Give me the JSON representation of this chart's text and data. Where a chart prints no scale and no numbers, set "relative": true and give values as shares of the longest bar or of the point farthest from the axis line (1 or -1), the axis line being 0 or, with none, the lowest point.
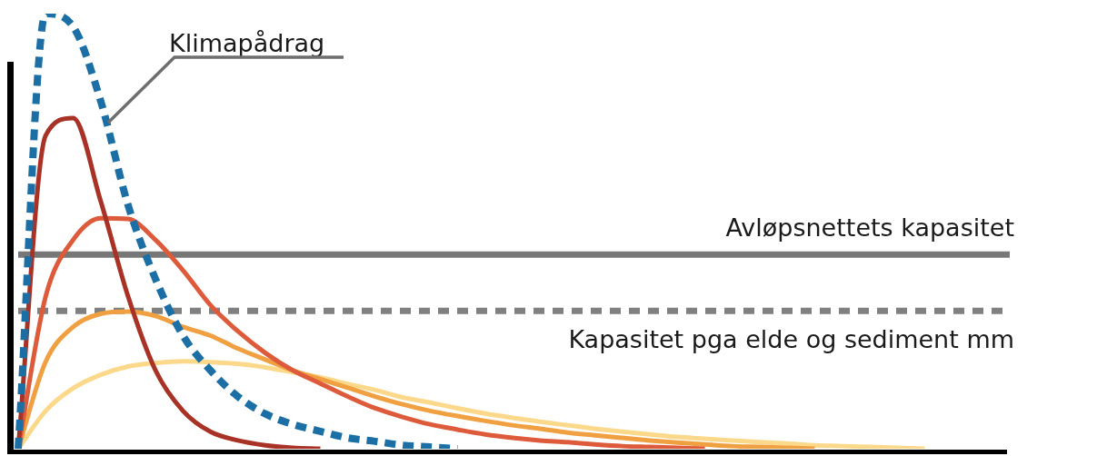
{
  "chart_data": {
    "type": "line",
    "relative": true,
    "legend": false,
    "grid": false,
    "marker": "none",
    "tick_labels": false,
    "categories": [
      null,
      null,
      null,
      null,
      null,
      null,
      null,
      null,
      null,
      null,
      null,
      null,
      null,
      null,
      null,
      null,
      null,
      null,
      null,
      null,
      null,
      null,
      null,
      null,
      null,
      null,
      null,
      null,
      null,
      null,
      null,
      null,
      null,
      null,
      null,
      null,
      null
    ],
    "series": [
      {
        "color": "#1b6fa5",
        "line_style": "dashed",
        "values": [
          0,
          1,
          0.97,
          0.8,
          0.56,
          0.39,
          0.26,
          0.18,
          0.12,
          0.08,
          0.056,
          0.04,
          0.025,
          0.017,
          0.008,
          0.004,
          0,
          null,
          null,
          null,
          null,
          null,
          null,
          null,
          null,
          null,
          null,
          null,
          null,
          null,
          null,
          null,
          null,
          null,
          null,
          null,
          null
        ]
      },
      {
        "color": "#a93226",
        "line_style": "solid",
        "values": [
          0,
          0.72,
          0.76,
          0.57,
          0.35,
          0.18,
          0.087,
          0.039,
          0.019,
          0.008,
          0.002,
          0,
          null,
          null,
          null,
          null,
          null,
          null,
          null,
          null,
          null,
          null,
          null,
          null,
          null,
          null,
          null,
          null,
          null,
          null,
          null,
          null,
          null,
          null,
          null,
          null,
          null
        ]
      },
      {
        "color": "#dd5a3a",
        "line_style": "solid",
        "values": [
          0,
          0.35,
          0.48,
          0.53,
          0.528,
          0.48,
          0.41,
          0.33,
          0.27,
          0.22,
          0.18,
          0.15,
          0.12,
          0.093,
          0.073,
          0.056,
          0.044,
          0.033,
          0.025,
          0.019,
          0.015,
          0.01,
          0.006,
          0.004,
          0.002,
          0,
          null,
          null,
          null,
          null,
          null,
          null,
          null,
          null,
          null,
          null,
          null
        ]
      },
      {
        "color": "#f0a040",
        "line_style": "solid",
        "values": [
          0,
          0.2,
          0.28,
          0.31,
          0.315,
          0.305,
          0.28,
          0.26,
          0.23,
          0.205,
          0.18,
          0.16,
          0.14,
          0.12,
          0.102,
          0.087,
          0.075,
          0.064,
          0.054,
          0.046,
          0.037,
          0.031,
          0.025,
          0.019,
          0.014,
          0.01,
          0.006,
          0.004,
          0.002,
          0,
          null,
          null,
          null,
          null,
          null,
          null,
          null
        ]
      },
      {
        "color": "#fcd98a",
        "line_style": "solid",
        "values": [
          0,
          0.087,
          0.139,
          0.17,
          0.189,
          0.197,
          0.201,
          0.199,
          0.195,
          0.187,
          0.176,
          0.164,
          0.149,
          0.135,
          0.118,
          0.106,
          0.093,
          0.081,
          0.071,
          0.062,
          0.054,
          0.046,
          0.039,
          0.033,
          0.027,
          0.023,
          0.019,
          0.015,
          0.012,
          0.008,
          0.006,
          0.004,
          0.002,
          0,
          null,
          null,
          null
        ]
      }
    ],
    "ref_lines": [
      {
        "axis": "y",
        "value": 0.446,
        "label": "Avløpsnettets kapasitet",
        "color": "#777777",
        "line_style": "solid"
      },
      {
        "axis": "y",
        "value": 0.317,
        "label": "Kapasitet pga elde og sediment mm",
        "color": "#808080",
        "line_style": "dashed"
      }
    ],
    "annotations": [
      "Klimapådrag"
    ]
  }
}
